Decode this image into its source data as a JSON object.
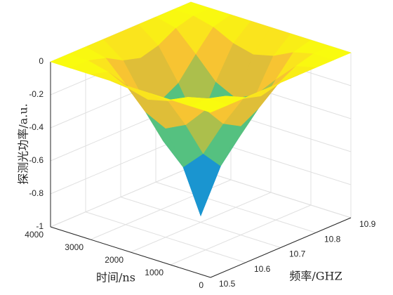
{
  "chart_data": {
    "type": "surface",
    "xlabel": "频率/GHZ",
    "ylabel": "时间/ns",
    "zlabel": "探测光功率/a.u.",
    "x": [
      10.5,
      10.55,
      10.6,
      10.65,
      10.7,
      10.75,
      10.8,
      10.85,
      10.9
    ],
    "y": [
      0,
      500,
      1000,
      1500,
      2000,
      2500,
      3000,
      3500,
      4000
    ],
    "z": [
      [
        0,
        0,
        0,
        0,
        0,
        0,
        0,
        0,
        0
      ],
      [
        0,
        0,
        -0.03,
        -0.09,
        -0.12,
        -0.09,
        -0.03,
        0,
        0
      ],
      [
        0,
        -0.03,
        -0.15,
        -0.28,
        -0.34,
        -0.28,
        -0.15,
        -0.03,
        0
      ],
      [
        0,
        -0.09,
        -0.28,
        -0.5,
        -0.62,
        -0.5,
        -0.28,
        -0.09,
        0
      ],
      [
        0,
        -0.12,
        -0.34,
        -0.62,
        -0.96,
        -0.62,
        -0.34,
        -0.12,
        0
      ],
      [
        0,
        -0.09,
        -0.28,
        -0.5,
        -0.62,
        -0.5,
        -0.28,
        -0.09,
        0
      ],
      [
        0,
        -0.03,
        -0.15,
        -0.28,
        -0.34,
        -0.28,
        -0.15,
        -0.03,
        0
      ],
      [
        0,
        0,
        -0.03,
        -0.09,
        -0.12,
        -0.09,
        -0.03,
        0,
        0
      ],
      [
        0,
        0,
        0,
        0,
        0,
        0,
        0,
        0,
        0
      ]
    ],
    "xlim": [
      10.5,
      10.9
    ],
    "xticks": [
      10.5,
      10.6,
      10.7,
      10.8,
      10.9
    ],
    "ylim": [
      0,
      4000
    ],
    "yticks": [
      0,
      1000,
      2000,
      3000,
      4000
    ],
    "zlim": [
      -1,
      0
    ],
    "zticks": [
      -1,
      -0.8,
      -0.6,
      -0.4,
      -0.2,
      0
    ],
    "grid": true,
    "colormap": [
      "#3e26a8",
      "#2e53f0",
      "#1f7ede",
      "#17a5c7",
      "#2bbba0",
      "#7bc663",
      "#d0ba3b",
      "#fbc531",
      "#f9fb0e"
    ]
  }
}
